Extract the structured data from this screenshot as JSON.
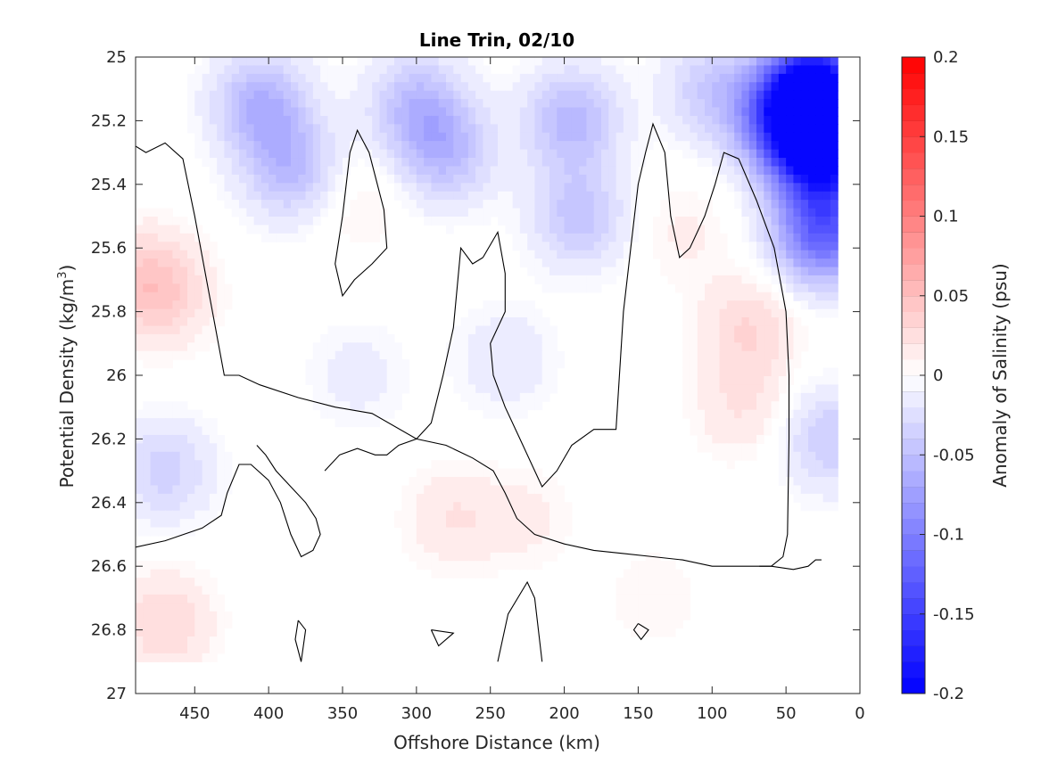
{
  "chart_data": {
    "type": "heatmap",
    "title": "Line Trin, 02/10",
    "xlabel": "Offshore Distance (km)",
    "ylabel": "Potential Density (kg/m",
    "ylabel_sup": "3",
    "ylabel_close": ")",
    "colorbar_label": "Anomaly of Salinity (psu)",
    "xlim": [
      490,
      0
    ],
    "ylim": [
      25,
      27
    ],
    "x_reversed": true,
    "y_reversed": true,
    "xticks": [
      450,
      400,
      350,
      300,
      250,
      200,
      150,
      100,
      50,
      0
    ],
    "xtick_labels": [
      "450",
      "400",
      "350",
      "300",
      "250",
      "200",
      "150",
      "100",
      "50",
      "0"
    ],
    "yticks": [
      25,
      25.2,
      25.4,
      25.6,
      25.8,
      26,
      26.2,
      26.4,
      26.6,
      26.8,
      27
    ],
    "ytick_labels": [
      "25",
      "25.2",
      "25.4",
      "25.6",
      "25.8",
      "26",
      "26.2",
      "26.4",
      "26.6",
      "26.8",
      "27"
    ],
    "clim": [
      -0.2,
      0.2
    ],
    "colorbar_ticks": [
      0.2,
      0.15,
      0.1,
      0.05,
      0,
      -0.05,
      -0.1,
      -0.15,
      -0.2
    ],
    "colorbar_tick_labels": [
      "0.2",
      "0.15",
      "0.1",
      "0.05",
      "0",
      "-0.05",
      "-0.1",
      "-0.15",
      "-0.2"
    ],
    "colorbar_levels": 40,
    "colormap": {
      "negative": "#0000ff",
      "zero": "#ffffff",
      "positive": "#ff0000"
    },
    "zero_contour_color": "#000000",
    "data_coverage_bottom": 26.9,
    "anomaly_features": [
      {
        "x": 405,
        "y": 25.15,
        "value": -0.06
      },
      {
        "x": 385,
        "y": 25.35,
        "value": -0.05
      },
      {
        "x": 300,
        "y": 25.15,
        "value": -0.05
      },
      {
        "x": 280,
        "y": 25.3,
        "value": -0.05
      },
      {
        "x": 195,
        "y": 25.2,
        "value": -0.055
      },
      {
        "x": 190,
        "y": 25.5,
        "value": -0.045
      },
      {
        "x": 100,
        "y": 25.1,
        "value": -0.04
      },
      {
        "x": 30,
        "y": 25.1,
        "value": -0.2
      },
      {
        "x": 25,
        "y": 25.3,
        "value": -0.18
      },
      {
        "x": 25,
        "y": 25.55,
        "value": -0.12
      },
      {
        "x": 50,
        "y": 25.2,
        "value": -0.12
      },
      {
        "x": 20,
        "y": 26.2,
        "value": -0.04
      },
      {
        "x": 470,
        "y": 26.3,
        "value": -0.035
      },
      {
        "x": 240,
        "y": 25.95,
        "value": -0.02
      },
      {
        "x": 340,
        "y": 26.0,
        "value": -0.015
      },
      {
        "x": 485,
        "y": 25.7,
        "value": 0.03
      },
      {
        "x": 470,
        "y": 25.75,
        "value": 0.025
      },
      {
        "x": 75,
        "y": 25.85,
        "value": 0.03
      },
      {
        "x": 80,
        "y": 26.1,
        "value": 0.02
      },
      {
        "x": 470,
        "y": 26.78,
        "value": 0.03
      },
      {
        "x": 275,
        "y": 26.45,
        "value": 0.02
      },
      {
        "x": 225,
        "y": 26.45,
        "value": 0.012
      },
      {
        "x": 140,
        "y": 26.7,
        "value": 0.01
      },
      {
        "x": 120,
        "y": 25.55,
        "value": 0.012
      },
      {
        "x": 340,
        "y": 25.45,
        "value": 0.012
      }
    ],
    "zero_contours": [
      [
        [
          490,
          25.28
        ],
        [
          483,
          25.3
        ],
        [
          470,
          25.27
        ],
        [
          458,
          25.32
        ],
        [
          450,
          25.5
        ],
        [
          442,
          25.7
        ],
        [
          436,
          25.85
        ],
        [
          430,
          26.0
        ],
        [
          420,
          26.0
        ],
        [
          406,
          26.03
        ],
        [
          380,
          26.07
        ],
        [
          355,
          26.1
        ],
        [
          330,
          26.12
        ],
        [
          300,
          26.2
        ],
        [
          280,
          26.22
        ],
        [
          262,
          26.26
        ],
        [
          248,
          26.3
        ],
        [
          240,
          26.37
        ],
        [
          232,
          26.45
        ],
        [
          220,
          26.5
        ],
        [
          200,
          26.53
        ],
        [
          180,
          26.55
        ],
        [
          160,
          26.56
        ],
        [
          140,
          26.57
        ],
        [
          120,
          26.58
        ],
        [
          100,
          26.6
        ],
        [
          80,
          26.6
        ],
        [
          60,
          26.6
        ],
        [
          45,
          26.61
        ],
        [
          35,
          26.6
        ],
        [
          30,
          26.58
        ],
        [
          26,
          26.58
        ]
      ],
      [
        [
          490,
          26.54
        ],
        [
          470,
          26.52
        ],
        [
          445,
          26.48
        ],
        [
          432,
          26.44
        ],
        [
          428,
          26.37
        ],
        [
          420,
          26.28
        ],
        [
          412,
          26.28
        ],
        [
          400,
          26.33
        ],
        [
          392,
          26.4
        ],
        [
          385,
          26.5
        ],
        [
          378,
          26.57
        ],
        [
          370,
          26.55
        ],
        [
          365,
          26.5
        ],
        [
          368,
          26.45
        ],
        [
          375,
          26.4
        ],
        [
          385,
          26.35
        ],
        [
          395,
          26.3
        ],
        [
          402,
          26.25
        ],
        [
          408,
          26.22
        ]
      ],
      [
        [
          350,
          25.5
        ],
        [
          345,
          25.3
        ],
        [
          340,
          25.23
        ],
        [
          332,
          25.3
        ],
        [
          322,
          25.48
        ],
        [
          320,
          25.6
        ],
        [
          330,
          25.65
        ],
        [
          342,
          25.7
        ],
        [
          350,
          25.75
        ],
        [
          355,
          25.65
        ],
        [
          350,
          25.5
        ]
      ],
      [
        [
          255,
          25.63
        ],
        [
          262,
          25.65
        ],
        [
          270,
          25.6
        ],
        [
          275,
          25.85
        ],
        [
          282,
          26.0
        ],
        [
          290,
          26.15
        ],
        [
          300,
          26.2
        ],
        [
          312,
          26.22
        ],
        [
          320,
          26.25
        ],
        [
          328,
          26.25
        ],
        [
          340,
          26.23
        ],
        [
          352,
          26.25
        ],
        [
          362,
          26.3
        ]
      ],
      [
        [
          255,
          25.63
        ],
        [
          245,
          25.55
        ],
        [
          240,
          25.68
        ],
        [
          240,
          25.8
        ],
        [
          250,
          25.9
        ],
        [
          248,
          26.0
        ],
        [
          240,
          26.1
        ],
        [
          230,
          26.2
        ],
        [
          215,
          26.35
        ],
        [
          205,
          26.3
        ],
        [
          195,
          26.22
        ],
        [
          180,
          26.17
        ],
        [
          165,
          26.17
        ],
        [
          160,
          25.8
        ],
        [
          155,
          25.6
        ],
        [
          150,
          25.4
        ],
        [
          145,
          25.3
        ],
        [
          140,
          25.21
        ],
        [
          132,
          25.3
        ],
        [
          128,
          25.5
        ],
        [
          122,
          25.63
        ],
        [
          115,
          25.6
        ],
        [
          105,
          25.5
        ],
        [
          98,
          25.4
        ],
        [
          92,
          25.3
        ],
        [
          82,
          25.32
        ],
        [
          70,
          25.45
        ],
        [
          58,
          25.6
        ],
        [
          50,
          25.8
        ],
        [
          48,
          26.0
        ],
        [
          48,
          26.2
        ],
        [
          49,
          26.5
        ],
        [
          52,
          26.57
        ],
        [
          60,
          26.6
        ],
        [
          68,
          26.6
        ]
      ],
      [
        [
          380,
          26.77
        ],
        [
          375,
          26.8
        ],
        [
          378,
          26.9
        ],
        [
          382,
          26.83
        ],
        [
          380,
          26.77
        ]
      ],
      [
        [
          290,
          26.8
        ],
        [
          285,
          26.85
        ],
        [
          275,
          26.81
        ],
        [
          290,
          26.8
        ]
      ],
      [
        [
          245,
          26.9
        ],
        [
          238,
          26.75
        ],
        [
          225,
          26.65
        ],
        [
          220,
          26.7
        ],
        [
          215,
          26.9
        ]
      ],
      [
        [
          150,
          26.78
        ],
        [
          143,
          26.8
        ],
        [
          148,
          26.83
        ],
        [
          153,
          26.8
        ],
        [
          150,
          26.78
        ]
      ]
    ]
  }
}
